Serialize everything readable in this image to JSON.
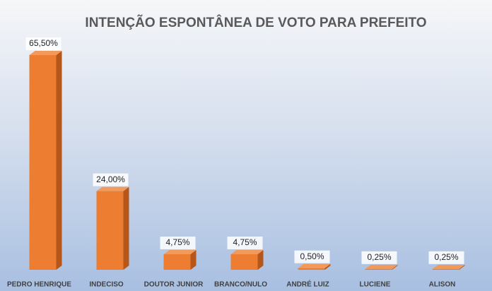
{
  "chart_data": {
    "type": "bar3d",
    "title": "INTENÇÃO ESPONTÂNEA DE VOTO PARA PREFEITO",
    "categories": [
      "PEDRO HENRIQUE",
      "INDECISO",
      "DOUTOR JUNIOR",
      "BRANCO/NULO",
      "ANDRÉ LUIZ",
      "LUCIENE",
      "ALISON"
    ],
    "values": [
      65.5,
      24,
      4.75,
      4.75,
      0.5,
      0.25,
      0.25
    ],
    "value_labels": [
      "65,50%",
      "24,00%",
      "4,75%",
      "4,75%",
      "0,50%",
      "0,25%",
      "0,25%"
    ],
    "color": "#ed7d31"
  }
}
